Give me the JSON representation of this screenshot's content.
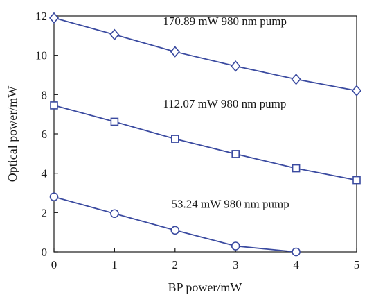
{
  "chart_data": {
    "type": "line",
    "xlabel": "BP power/mW",
    "ylabel": "Optical power/mW",
    "xlim": [
      0,
      5
    ],
    "ylim": [
      0,
      12
    ],
    "xticks": [
      "0",
      "1",
      "2",
      "3",
      "4",
      "5"
    ],
    "yticks": [
      "0",
      "2",
      "4",
      "6",
      "8",
      "10",
      "12"
    ],
    "grid": false,
    "legend": "none",
    "line_color": "#3a4aa0",
    "series": [
      {
        "label": "170.89 mW 980 nm pump",
        "marker": "diamond",
        "x": [
          0,
          1,
          2,
          3,
          4,
          5
        ],
        "y": [
          11.9,
          11.05,
          10.18,
          9.45,
          8.78,
          8.2
        ]
      },
      {
        "label": "112.07 mW 980 nm pump",
        "marker": "square",
        "x": [
          0,
          1,
          2,
          3,
          4,
          5
        ],
        "y": [
          7.45,
          6.62,
          5.75,
          4.98,
          4.25,
          3.65
        ]
      },
      {
        "label": "53.24 mW 980 nm pump",
        "marker": "circle",
        "x": [
          0,
          1,
          2,
          3,
          4
        ],
        "y": [
          2.8,
          1.95,
          1.1,
          0.3,
          0.0
        ]
      }
    ]
  }
}
